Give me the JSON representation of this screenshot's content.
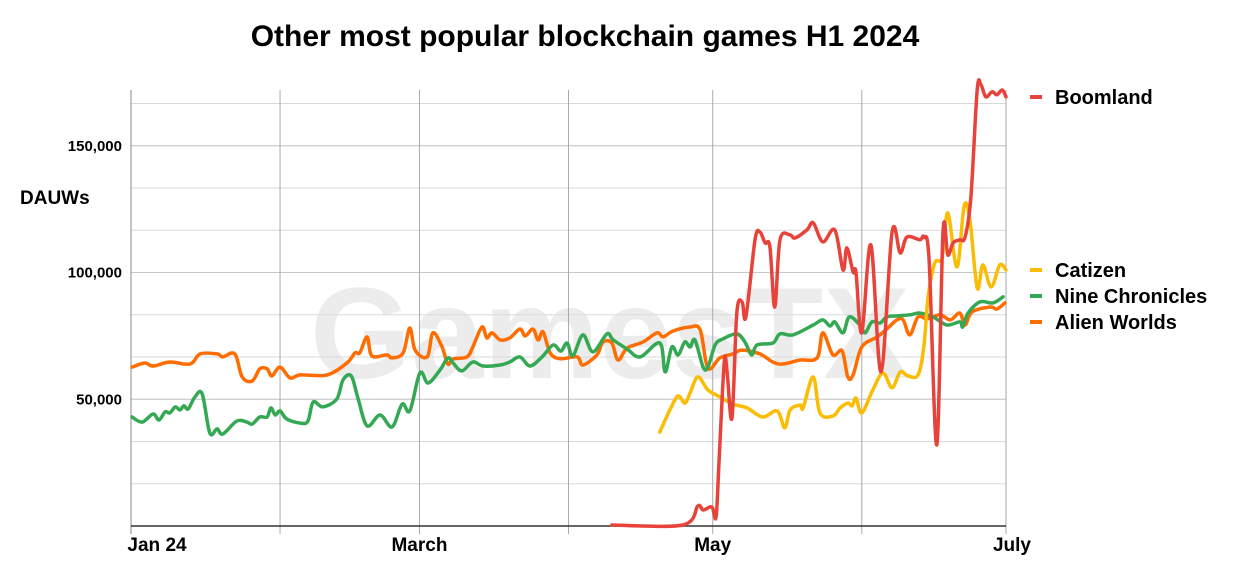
{
  "chart_data": {
    "type": "line",
    "title": "Other most popular blockchain games H1 2024",
    "ylabel": "DAUWs",
    "xlabel": "",
    "x_unit": "days since Jan 1 2024",
    "value_unit": "thousands",
    "xlim": [
      0,
      182
    ],
    "ylim": [
      0,
      172000
    ],
    "yticks": [
      {
        "v": 50000,
        "label": "50,000"
      },
      {
        "v": 100000,
        "label": "100,000"
      },
      {
        "v": 150000,
        "label": "150,000"
      }
    ],
    "minor_grid_step": 16667,
    "xticks": [
      {
        "d": 0,
        "label": "Jan 24"
      },
      {
        "d": 31,
        "label": ""
      },
      {
        "d": 60,
        "label": "March"
      },
      {
        "d": 91,
        "label": ""
      },
      {
        "d": 121,
        "label": "May"
      },
      {
        "d": 152,
        "label": ""
      },
      {
        "d": 182,
        "label": "July"
      }
    ],
    "grid": true,
    "legend": "right",
    "watermark": "GamesTX",
    "series": [
      {
        "name": "Boomland",
        "color": "#e8433a",
        "legend_group": "top",
        "points": [
          [
            100,
            0.4
          ],
          [
            114.8,
            0.4
          ],
          [
            117.9,
            7.9
          ],
          [
            119,
            6.3
          ],
          [
            120.8,
            7.5
          ],
          [
            121.7,
            3.6
          ],
          [
            122.3,
            25
          ],
          [
            123.4,
            64.7
          ],
          [
            124,
            60.4
          ],
          [
            125,
            42.6
          ],
          [
            126,
            84
          ],
          [
            127.1,
            88.4
          ],
          [
            127.9,
            82.5
          ],
          [
            129.8,
            112.9
          ],
          [
            130.8,
            116
          ],
          [
            131.9,
            111.7
          ],
          [
            132.9,
            110.1
          ],
          [
            133.9,
            86.4
          ],
          [
            135,
            112.9
          ],
          [
            137.1,
            114.8
          ],
          [
            138.1,
            113.6
          ],
          [
            140.6,
            116.8
          ],
          [
            141.9,
            119.6
          ],
          [
            143.9,
            112.1
          ],
          [
            146.4,
            116.8
          ],
          [
            148.1,
            101
          ],
          [
            148.9,
            109.7
          ],
          [
            150.2,
            100.2
          ],
          [
            150.8,
            100
          ],
          [
            152,
            76.2
          ],
          [
            153.9,
            110.9
          ],
          [
            156,
            60.8
          ],
          [
            158.3,
            116
          ],
          [
            160,
            107.7
          ],
          [
            161.4,
            114
          ],
          [
            164.1,
            112.9
          ],
          [
            164.9,
            114
          ],
          [
            166,
            105
          ],
          [
            167.6,
            32
          ],
          [
            168.9,
            116
          ],
          [
            169.9,
            106.9
          ],
          [
            171,
            111.7
          ],
          [
            172.4,
            112.9
          ],
          [
            173.5,
            114
          ],
          [
            174.7,
            129.8
          ],
          [
            176,
            172
          ],
          [
            176.8,
            174
          ],
          [
            177.8,
            169.3
          ],
          [
            179.1,
            171.3
          ],
          [
            180.1,
            170.1
          ],
          [
            181.2,
            172
          ],
          [
            182,
            169.3
          ]
        ]
      },
      {
        "name": "Catizen",
        "color": "#fbbc04",
        "legend_group": "bottom",
        "points": [
          [
            110,
            37.1
          ],
          [
            112.1,
            45.8
          ],
          [
            113.8,
            51.3
          ],
          [
            115.2,
            48.5
          ],
          [
            116.3,
            52.5
          ],
          [
            117.9,
            58.8
          ],
          [
            120,
            53.7
          ],
          [
            122.5,
            50.9
          ],
          [
            125.2,
            48.1
          ],
          [
            128.1,
            46.6
          ],
          [
            131.4,
            43
          ],
          [
            134.4,
            45.4
          ],
          [
            136,
            38.7
          ],
          [
            137.1,
            45.8
          ],
          [
            139.2,
            47.7
          ],
          [
            139.8,
            46.6
          ],
          [
            141.9,
            58.8
          ],
          [
            143.3,
            44.6
          ],
          [
            146,
            43.4
          ],
          [
            147.5,
            46.6
          ],
          [
            149.1,
            48.5
          ],
          [
            150,
            47.4
          ],
          [
            150.8,
            50.5
          ],
          [
            152,
            44.6
          ],
          [
            154.3,
            53.7
          ],
          [
            156.4,
            60.4
          ],
          [
            158.3,
            54.5
          ],
          [
            160,
            60.8
          ],
          [
            161.6,
            59.2
          ],
          [
            163.7,
            59.6
          ],
          [
            164.9,
            70.6
          ],
          [
            165.8,
            90.4
          ],
          [
            167.2,
            103.8
          ],
          [
            168.7,
            105.8
          ],
          [
            169.9,
            123.5
          ],
          [
            171.8,
            102.2
          ],
          [
            173.3,
            126.3
          ],
          [
            174.5,
            120.7
          ],
          [
            176,
            93.9
          ],
          [
            177.2,
            103
          ],
          [
            178.9,
            94.3
          ],
          [
            180.7,
            103
          ],
          [
            182,
            101
          ]
        ]
      },
      {
        "name": "Nine Chronicles",
        "color": "#34a853",
        "legend_group": "bottom",
        "points": [
          [
            0.2,
            43
          ],
          [
            2.3,
            41
          ],
          [
            4.6,
            44.2
          ],
          [
            5.8,
            41.8
          ],
          [
            7.1,
            45
          ],
          [
            8.1,
            44.6
          ],
          [
            9.2,
            47
          ],
          [
            10.2,
            45.8
          ],
          [
            11,
            47.4
          ],
          [
            11.9,
            46.2
          ],
          [
            13.3,
            50.9
          ],
          [
            14.8,
            52.1
          ],
          [
            16.4,
            36.7
          ],
          [
            17.9,
            38.3
          ],
          [
            19.1,
            36.3
          ],
          [
            22,
            41.4
          ],
          [
            24.1,
            41
          ],
          [
            25.2,
            40.2
          ],
          [
            26.8,
            43
          ],
          [
            28.3,
            43
          ],
          [
            29.1,
            46.6
          ],
          [
            30,
            43.8
          ],
          [
            31,
            45.4
          ],
          [
            32.4,
            42.2
          ],
          [
            35.2,
            40.6
          ],
          [
            36.8,
            41.4
          ],
          [
            37.9,
            48.9
          ],
          [
            39.9,
            47
          ],
          [
            42.8,
            50.1
          ],
          [
            44.1,
            57.6
          ],
          [
            45.8,
            59.2
          ],
          [
            47.2,
            50.5
          ],
          [
            49.1,
            39.5
          ],
          [
            51.8,
            43.8
          ],
          [
            54.3,
            39.1
          ],
          [
            56.4,
            48.1
          ],
          [
            58,
            45.4
          ],
          [
            60.1,
            60.4
          ],
          [
            61.8,
            56.4
          ],
          [
            64.3,
            61.6
          ],
          [
            65.9,
            66.3
          ],
          [
            67,
            64.3
          ],
          [
            68.8,
            61.2
          ],
          [
            71.1,
            64.7
          ],
          [
            73.2,
            63.1
          ],
          [
            76.8,
            63.5
          ],
          [
            78.8,
            64.7
          ],
          [
            80.9,
            66.7
          ],
          [
            83,
            63.1
          ],
          [
            85.5,
            66.7
          ],
          [
            87.8,
            71.4
          ],
          [
            89.4,
            69
          ],
          [
            90.7,
            72.2
          ],
          [
            91.9,
            67.1
          ],
          [
            94,
            75.4
          ],
          [
            96.1,
            68.7
          ],
          [
            99,
            75.8
          ],
          [
            100.3,
            73.4
          ],
          [
            103.2,
            69.8
          ],
          [
            105.9,
            66.7
          ],
          [
            110,
            72.2
          ],
          [
            111.1,
            60.8
          ],
          [
            112.5,
            70.6
          ],
          [
            113.8,
            67.5
          ],
          [
            115.2,
            72.6
          ],
          [
            116.3,
            70.6
          ],
          [
            117.3,
            73.4
          ],
          [
            119,
            62.7
          ],
          [
            120,
            62.7
          ],
          [
            121.5,
            71.4
          ],
          [
            123.1,
            73.8
          ],
          [
            126,
            75.8
          ],
          [
            127.7,
            72.6
          ],
          [
            129.1,
            67.5
          ],
          [
            130.2,
            71.4
          ],
          [
            133.5,
            72.2
          ],
          [
            135,
            75.8
          ],
          [
            137.7,
            75.4
          ],
          [
            141.9,
            79.3
          ],
          [
            143.9,
            81.3
          ],
          [
            145.4,
            78.9
          ],
          [
            146.4,
            80.5
          ],
          [
            148.1,
            76.2
          ],
          [
            149.4,
            82.5
          ],
          [
            151.6,
            79.3
          ],
          [
            152.7,
            76.2
          ],
          [
            154.1,
            80.5
          ],
          [
            155.8,
            80.1
          ],
          [
            157.2,
            82.5
          ],
          [
            159.3,
            82.9
          ],
          [
            162,
            83.3
          ],
          [
            164.1,
            84
          ],
          [
            166.8,
            82.5
          ],
          [
            169.7,
            79.3
          ],
          [
            172.4,
            80.5
          ],
          [
            173,
            78.5
          ],
          [
            174.1,
            84
          ],
          [
            176.6,
            88.4
          ],
          [
            179.3,
            88
          ],
          [
            181.4,
            90.4
          ]
        ]
      },
      {
        "name": "Alien Worlds",
        "color": "#ff6d01",
        "legend_group": "bottom",
        "points": [
          [
            0.2,
            62.7
          ],
          [
            2.9,
            64.3
          ],
          [
            4.6,
            63.1
          ],
          [
            8.1,
            64.7
          ],
          [
            12.3,
            63.9
          ],
          [
            14.4,
            67.9
          ],
          [
            17.9,
            67.9
          ],
          [
            19.1,
            66.7
          ],
          [
            21.6,
            67.9
          ],
          [
            23.1,
            58.8
          ],
          [
            25.2,
            57.2
          ],
          [
            26.8,
            62
          ],
          [
            28.3,
            62
          ],
          [
            29.3,
            59.2
          ],
          [
            31,
            62.7
          ],
          [
            33.1,
            58.4
          ],
          [
            35.2,
            59.6
          ],
          [
            40.8,
            59.6
          ],
          [
            44.9,
            64.3
          ],
          [
            46.6,
            68.3
          ],
          [
            47.6,
            68.3
          ],
          [
            49.1,
            74.6
          ],
          [
            50.1,
            67.1
          ],
          [
            53.2,
            67.5
          ],
          [
            54.3,
            66.3
          ],
          [
            56.6,
            68.3
          ],
          [
            58,
            78.1
          ],
          [
            59.1,
            69.4
          ],
          [
            61.6,
            66.7
          ],
          [
            62.8,
            76.2
          ],
          [
            64.7,
            70.6
          ],
          [
            65.9,
            63.9
          ],
          [
            67,
            65.9
          ],
          [
            69.9,
            66.7
          ],
          [
            71.1,
            70.6
          ],
          [
            73,
            78.5
          ],
          [
            74,
            74.2
          ],
          [
            75.1,
            76.2
          ],
          [
            76.8,
            73.4
          ],
          [
            78.8,
            74.2
          ],
          [
            80.9,
            77.7
          ],
          [
            82,
            75
          ],
          [
            83.6,
            77.7
          ],
          [
            84.7,
            73.4
          ],
          [
            85.7,
            76.6
          ],
          [
            87.2,
            68.3
          ],
          [
            89.2,
            66
          ],
          [
            92.8,
            66.7
          ],
          [
            94,
            63.5
          ],
          [
            96.9,
            67.5
          ],
          [
            98.2,
            72.6
          ],
          [
            100,
            72.2
          ],
          [
            101.3,
            65.5
          ],
          [
            103.2,
            70.2
          ],
          [
            106.5,
            72.6
          ],
          [
            109.4,
            76.2
          ],
          [
            110.7,
            74.6
          ],
          [
            112.7,
            76.9
          ],
          [
            116.3,
            78.5
          ],
          [
            118.4,
            77.3
          ],
          [
            120,
            62.3
          ],
          [
            122.5,
            66.3
          ],
          [
            125.2,
            67.9
          ],
          [
            127.1,
            69.4
          ],
          [
            130.8,
            67.9
          ],
          [
            133.5,
            64.7
          ],
          [
            135.6,
            63.9
          ],
          [
            139.2,
            65.5
          ],
          [
            142.7,
            66.3
          ],
          [
            143.9,
            76.2
          ],
          [
            146,
            67.5
          ],
          [
            147.9,
            69.1
          ],
          [
            149.1,
            58.8
          ],
          [
            150.2,
            59.6
          ],
          [
            152,
            70.6
          ],
          [
            155.2,
            74.6
          ],
          [
            157.2,
            77.7
          ],
          [
            159.3,
            81.3
          ],
          [
            160.6,
            81.3
          ],
          [
            162,
            75.4
          ],
          [
            163.7,
            82.5
          ],
          [
            165.6,
            81.7
          ],
          [
            168.3,
            83.3
          ],
          [
            170.4,
            81.3
          ],
          [
            172.4,
            84
          ],
          [
            173.5,
            79.3
          ],
          [
            174.9,
            84.4
          ],
          [
            178.7,
            86.4
          ],
          [
            180.1,
            85.6
          ],
          [
            181.8,
            88
          ]
        ]
      }
    ]
  }
}
